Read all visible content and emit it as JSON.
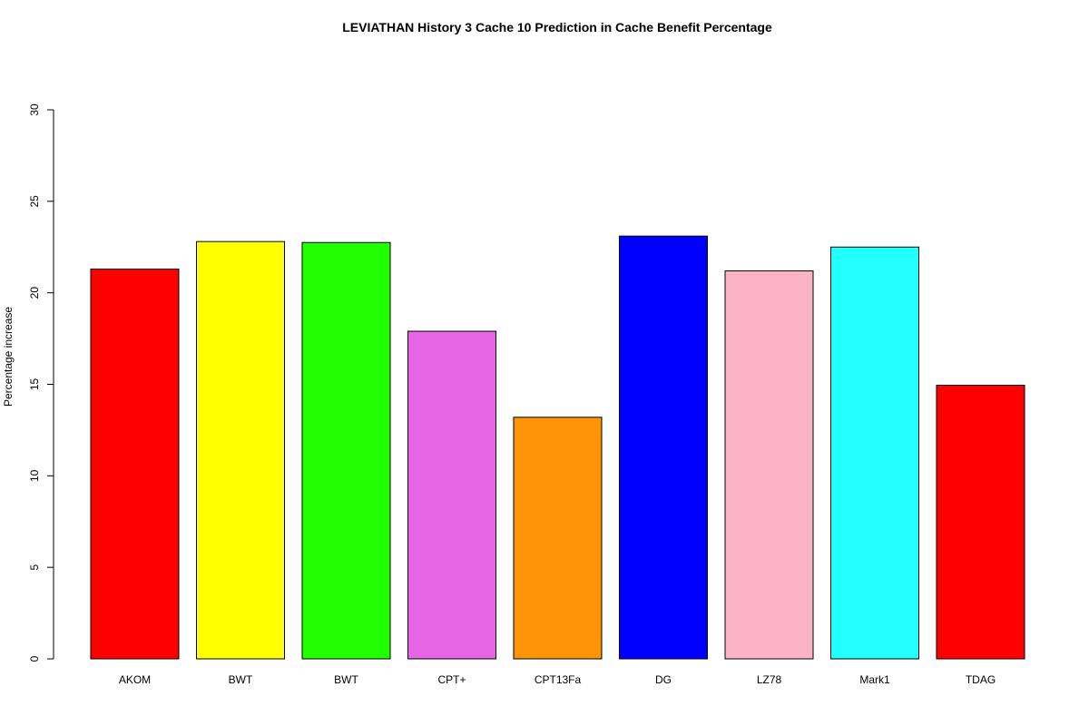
{
  "chart_data": {
    "type": "bar",
    "title": "LEVIATHAN  History  3  Cache  10 Prediction in Cache Benefit Percentage",
    "xlabel": "",
    "ylabel": "Percentage increase",
    "ylim": [
      0,
      30
    ],
    "yticks": [
      0,
      5,
      10,
      15,
      20,
      25,
      30
    ],
    "grid": false,
    "categories": [
      "AKOM",
      "BWT",
      "BWT",
      "CPT+",
      "CPT13Fa",
      "DG",
      "LZ78",
      "Mark1",
      "TDAG"
    ],
    "values": [
      21.3,
      22.8,
      22.75,
      17.9,
      13.2,
      23.1,
      21.2,
      22.5,
      14.95
    ],
    "colors": [
      "#ff0000",
      "#ffff00",
      "#22ff00",
      "#e666e6",
      "#ff9408",
      "#0000ff",
      "#fdb3c6",
      "#22ffff",
      "#ff0000"
    ]
  }
}
